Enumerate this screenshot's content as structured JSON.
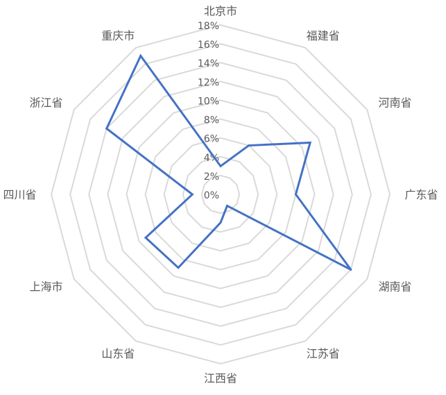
{
  "chart_data": {
    "type": "radar",
    "title": "",
    "categories": [
      "北京市",
      "福建省",
      "河南省",
      "广东省",
      "湖南省",
      "江苏省",
      "江西省",
      "山东省",
      "上海市",
      "四川省",
      "浙江省",
      "重庆市"
    ],
    "series": [
      {
        "values": [
          3.0,
          6.0,
          11.0,
          8.0,
          16.0,
          1.4,
          3.0,
          9.0,
          9.2,
          3.0,
          14.0,
          17.0
        ]
      }
    ],
    "value_unit": "%",
    "rlim": [
      0,
      18
    ],
    "ticks": [
      "0%",
      "2%",
      "4%",
      "6%",
      "8%",
      "10%",
      "12%",
      "14%",
      "16%",
      "18%"
    ],
    "tick_values": [
      0,
      2,
      4,
      6,
      8,
      10,
      12,
      14,
      16,
      18
    ],
    "grid": true,
    "legend": "none",
    "colors": {
      "series": "#4472C4",
      "grid": "#D9D9D9",
      "text": "#595959"
    }
  }
}
